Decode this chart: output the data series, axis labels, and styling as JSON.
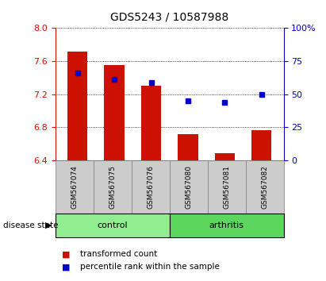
{
  "title": "GDS5243 / 10587988",
  "samples": [
    "GSM567074",
    "GSM567075",
    "GSM567076",
    "GSM567080",
    "GSM567081",
    "GSM567082"
  ],
  "red_values": [
    7.72,
    7.55,
    7.3,
    6.72,
    6.48,
    6.76
  ],
  "blue_values": [
    66,
    61,
    59,
    45,
    44,
    50
  ],
  "baseline": 6.4,
  "ylim_left": [
    6.4,
    8.0
  ],
  "ylim_right": [
    0,
    100
  ],
  "yticks_left": [
    6.4,
    6.8,
    7.2,
    7.6,
    8.0
  ],
  "yticks_right": [
    0,
    25,
    50,
    75,
    100
  ],
  "groups": [
    {
      "label": "control",
      "indices": [
        0,
        1,
        2
      ],
      "color": "#90ee90"
    },
    {
      "label": "arthritis",
      "indices": [
        3,
        4,
        5
      ],
      "color": "#5cd65c"
    }
  ],
  "bar_color": "#cc1100",
  "dot_color": "#0000cc",
  "bar_width": 0.55,
  "label_bar": "transformed count",
  "label_dot": "percentile rank within the sample",
  "group_label": "disease state",
  "tick_color_left": "#cc1100",
  "tick_color_right": "#0000cc",
  "bg_label": "#cccccc",
  "fig_width": 4.11,
  "fig_height": 3.54,
  "dpi": 100
}
